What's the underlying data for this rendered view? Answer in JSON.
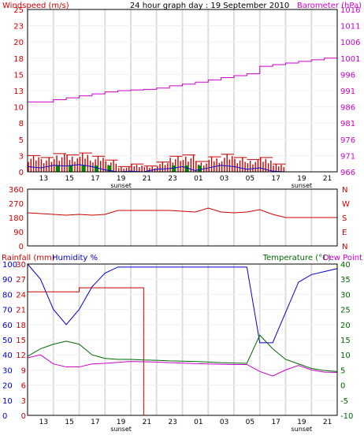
{
  "colors": {
    "wind_avg": "#0000cc",
    "wind_gust": "#cc0000",
    "wind_dir": "#cc0000",
    "baro": "#cc00cc",
    "rain": "#cc0000",
    "humidity": "#0000cc",
    "temp": "#006600",
    "dew": "#cc00cc",
    "grid": "#dddddd",
    "frame": "#000000",
    "green_mark": "#008800"
  },
  "x_ticks": [
    "13",
    "15",
    "17",
    "19",
    "21",
    "23",
    "01",
    "03",
    "05",
    "17",
    "19",
    "21"
  ],
  "sunset_label": "sunset",
  "chart_data": [
    {
      "type": "line",
      "title": "24 hour graph day : 19 September 2010",
      "left_axis_label": "Windspeed (m/s)",
      "right_axis_label": "Barometer (hPa)",
      "left_ticks": [
        "25",
        "23",
        "20",
        "18",
        "15",
        "13",
        "10",
        "8",
        "5",
        "3",
        "0"
      ],
      "right_ticks": [
        "1016",
        "1011",
        "1006",
        "1001",
        "996",
        "991",
        "986",
        "981",
        "976",
        "971",
        "966"
      ],
      "left_range": [
        0,
        25
      ],
      "right_range": [
        966,
        1016
      ],
      "series": [
        {
          "axis": "right",
          "x": [
            0,
            1,
            2,
            3,
            4,
            5,
            6,
            7,
            8,
            9,
            10,
            11,
            12,
            13,
            14,
            15,
            16,
            17,
            18,
            19,
            20,
            21,
            22,
            23,
            24
          ],
          "values": [
            987.5,
            987.5,
            988.2,
            988.8,
            989.4,
            990.0,
            990.6,
            991.0,
            991.2,
            991.4,
            991.8,
            992.5,
            993.0,
            993.6,
            994.3,
            995.0,
            995.6,
            996.2,
            998.5,
            999.0,
            999.5,
            1000.0,
            1000.5,
            1001.0,
            1001.5
          ]
        },
        {
          "axis": "left",
          "x": [
            0,
            1,
            2,
            3,
            4,
            5,
            6,
            7,
            8,
            9,
            10,
            11,
            12,
            13,
            14,
            15,
            16,
            17,
            18,
            19,
            20,
            21,
            22,
            23,
            24
          ],
          "values": [
            2.5,
            2.2,
            2.8,
            2.6,
            2.9,
            2.4,
            1.8,
            0.8,
            1.2,
            0.9,
            1.5,
            2.4,
            2.6,
            1.6,
            2.3,
            2.7,
            2.2,
            1.9,
            2.2,
            1.2,
            0,
            0,
            0,
            0,
            0
          ]
        },
        {
          "axis": "left",
          "x": [
            0,
            1,
            2,
            3,
            4,
            5,
            6,
            7,
            8,
            9,
            10,
            11,
            12,
            13,
            14,
            15,
            16,
            17,
            18,
            19,
            20,
            21,
            22,
            23,
            24
          ],
          "values": [
            0.8,
            0.6,
            1.0,
            0.9,
            1.1,
            0.8,
            0.3,
            0,
            0.1,
            0,
            0.4,
            0.5,
            0.8,
            0.2,
            0.6,
            1.0,
            0.8,
            0.4,
            0.6,
            0.1,
            0,
            0,
            0,
            0,
            0
          ]
        }
      ]
    },
    {
      "type": "line",
      "left_ticks": [
        "360",
        "270",
        "180",
        "90",
        "0"
      ],
      "right_ticks": [
        "N",
        "W",
        "S",
        "E",
        "N"
      ],
      "left_range": [
        0,
        360
      ],
      "series": [
        {
          "axis": "left",
          "x": [
            0,
            1,
            2,
            3,
            4,
            5,
            6,
            7,
            8,
            9,
            10,
            11,
            12,
            13,
            14,
            15,
            16,
            17,
            18,
            19,
            20,
            21,
            22,
            23,
            24
          ],
          "values": [
            210,
            205,
            200,
            195,
            200,
            195,
            200,
            225,
            225,
            225,
            225,
            225,
            220,
            215,
            240,
            215,
            210,
            215,
            230,
            200,
            180,
            180,
            180,
            180,
            180
          ]
        }
      ]
    },
    {
      "type": "line",
      "left_axis_label": "Rainfall (mm)",
      "left_axis_label2": "Humidity %",
      "right_axis_label": "Temperature (°C)",
      "right_axis_label2": "Dew Point",
      "rain_ticks": [
        "30",
        "27",
        "24",
        "21",
        "18",
        "15",
        "12",
        "9",
        "6",
        "3",
        "0"
      ],
      "humidity_ticks": [
        "100",
        "90",
        "80",
        "70",
        "60",
        "50",
        "40",
        "30",
        "20",
        "10",
        "0"
      ],
      "temp_ticks": [
        "40",
        "35",
        "30",
        "25",
        "20",
        "15",
        "10",
        "5",
        "0",
        "-5",
        "-10"
      ],
      "rain_range": [
        0,
        30
      ],
      "humidity_range": [
        0,
        100
      ],
      "temp_range": [
        -10,
        40
      ],
      "series": [
        {
          "axis": "rain",
          "x": [
            0,
            1,
            2,
            3,
            4,
            5,
            6,
            7,
            8,
            9,
            10,
            11,
            12,
            13,
            14,
            15,
            16,
            17,
            18,
            19,
            20,
            21,
            22,
            23,
            24
          ],
          "values": [
            24.5,
            24.5,
            24.5,
            24.5,
            25.3,
            25.3,
            25.3,
            25.3,
            25.3,
            0,
            0,
            0,
            0,
            0,
            0,
            0,
            0,
            0,
            0,
            0,
            0,
            0,
            0,
            0,
            0
          ]
        },
        {
          "axis": "humidity",
          "x": [
            0,
            1,
            2,
            3,
            4,
            5,
            6,
            7,
            8,
            9,
            10,
            11,
            12,
            13,
            14,
            15,
            16,
            17,
            18,
            19,
            20,
            21,
            22,
            23,
            24
          ],
          "values": [
            100,
            90,
            70,
            60,
            70,
            85,
            94,
            98,
            98,
            98,
            98,
            98,
            98,
            98,
            98,
            98,
            98,
            98,
            48,
            48,
            68,
            88,
            93,
            95,
            97
          ]
        },
        {
          "axis": "temp",
          "x": [
            0,
            1,
            2,
            3,
            4,
            5,
            6,
            7,
            8,
            9,
            10,
            11,
            12,
            13,
            14,
            15,
            16,
            17,
            18,
            19,
            20,
            21,
            22,
            23,
            24
          ],
          "values": [
            9.5,
            12.0,
            13.5,
            14.5,
            13.5,
            10.0,
            8.8,
            8.5,
            8.5,
            8.3,
            8.2,
            8.0,
            7.9,
            7.8,
            7.6,
            7.4,
            7.3,
            7.2,
            16.5,
            12.0,
            8.5,
            7.0,
            5.5,
            4.8,
            4.5
          ]
        },
        {
          "axis": "temp",
          "x": [
            0,
            1,
            2,
            3,
            4,
            5,
            6,
            7,
            8,
            9,
            10,
            11,
            12,
            13,
            14,
            15,
            16,
            17,
            18,
            19,
            20,
            21,
            22,
            23,
            24
          ],
          "values": [
            9.0,
            10.0,
            7.0,
            6.0,
            6.0,
            7.0,
            7.2,
            7.5,
            7.8,
            7.7,
            7.6,
            7.4,
            7.3,
            7.1,
            7.0,
            6.9,
            6.8,
            6.8,
            4.5,
            3.0,
            5.0,
            6.5,
            5.0,
            4.3,
            4.2
          ]
        }
      ]
    }
  ]
}
